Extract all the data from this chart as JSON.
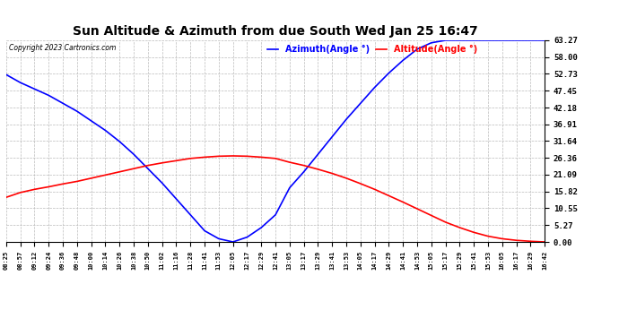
{
  "title": "Sun Altitude & Azimuth from due South Wed Jan 25 16:47",
  "copyright": "Copyright 2023 Cartronics.com",
  "legend_azimuth": "Azimuth(Angle °)",
  "legend_altitude": "Altitude(Angle °)",
  "azimuth_color": "blue",
  "altitude_color": "red",
  "bg_color": "white",
  "grid_color": "#bbbbbb",
  "yticks": [
    0.0,
    5.27,
    10.55,
    15.82,
    21.09,
    26.36,
    31.64,
    36.91,
    42.18,
    47.45,
    52.73,
    58.0,
    63.27
  ],
  "ymin": 0.0,
  "ymax": 63.27,
  "x_times": [
    "08:25",
    "08:57",
    "09:12",
    "09:24",
    "09:36",
    "09:48",
    "10:00",
    "10:14",
    "10:26",
    "10:38",
    "10:50",
    "11:02",
    "11:16",
    "11:28",
    "11:41",
    "11:53",
    "12:05",
    "12:17",
    "12:29",
    "12:41",
    "13:05",
    "13:17",
    "13:29",
    "13:41",
    "13:53",
    "14:05",
    "14:17",
    "14:29",
    "14:41",
    "14:53",
    "15:05",
    "15:17",
    "15:29",
    "15:41",
    "15:53",
    "16:05",
    "16:17",
    "16:29",
    "16:42"
  ],
  "azimuth_values": [
    52.5,
    50.0,
    48.0,
    46.0,
    43.5,
    41.0,
    38.0,
    35.0,
    31.5,
    27.5,
    23.0,
    18.5,
    13.5,
    8.5,
    3.5,
    1.0,
    0.0,
    1.5,
    4.5,
    8.5,
    17.0,
    22.0,
    27.5,
    33.0,
    38.5,
    43.5,
    48.5,
    53.0,
    57.0,
    60.5,
    62.5,
    63.27,
    63.27,
    63.27,
    63.27,
    63.27,
    63.27,
    63.27,
    63.27
  ],
  "altitude_values": [
    14.0,
    15.5,
    16.5,
    17.3,
    18.2,
    19.0,
    20.0,
    21.0,
    22.0,
    23.0,
    24.0,
    24.8,
    25.5,
    26.2,
    26.6,
    26.9,
    27.0,
    26.9,
    26.6,
    26.2,
    25.0,
    24.0,
    22.8,
    21.5,
    20.0,
    18.3,
    16.5,
    14.5,
    12.5,
    10.4,
    8.3,
    6.2,
    4.5,
    3.0,
    1.8,
    1.0,
    0.5,
    0.2,
    0.0
  ]
}
